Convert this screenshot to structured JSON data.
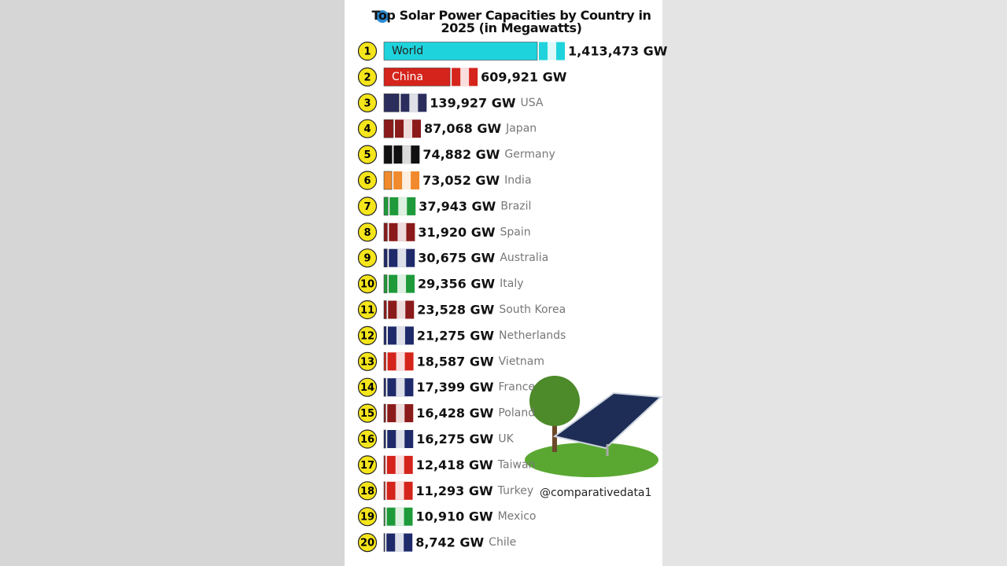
{
  "chart_data": {
    "type": "bar",
    "title": "Top Solar Power Capacities by Country in 2025 (in Megawatts)",
    "ranks": [
      1,
      2,
      3,
      4,
      5,
      6,
      7,
      8,
      9,
      10,
      11,
      12,
      13,
      14,
      15,
      16,
      17,
      18,
      19,
      20
    ],
    "categories": [
      "World",
      "China",
      "USA",
      "Japan",
      "Germany",
      "India",
      "Brazil",
      "Spain",
      "Australia",
      "Italy",
      "South Korea",
      "Netherlands",
      "Vietnam",
      "France",
      "Poland",
      "UK",
      "Taiwan",
      "Turkey",
      "Mexico",
      "Chile"
    ],
    "values": [
      1413473,
      609921,
      139927,
      87068,
      74882,
      73052,
      37943,
      31920,
      30675,
      29356,
      23528,
      21275,
      18587,
      17399,
      16428,
      16275,
      12418,
      11293,
      10910,
      8742
    ],
    "value_labels": [
      "1,413,473 GW",
      "609,921 GW",
      "139,927 GW",
      "87,068 GW",
      "74,882 GW",
      "73,052 GW",
      "37,943 GW",
      "31,920 GW",
      "30,675 GW",
      "29,356 GW",
      "23,528 GW",
      "21,275 GW",
      "18,587 GW",
      "17,399 GW",
      "16,428 GW",
      "16,275 GW",
      "12,418 GW",
      "11,293 GW",
      "10,910 GW",
      "8,742 GW"
    ],
    "colors": [
      "#1fd3dc",
      "#d4241b",
      "#2b2d5c",
      "#8b1a1a",
      "#111111",
      "#f08a2c",
      "#1f9a3a",
      "#8b1a1a",
      "#1f2a6b",
      "#1f9a3a",
      "#8b1a1a",
      "#1f2a6b",
      "#d4241b",
      "#1f2a6b",
      "#8b1a1a",
      "#1f2a6b",
      "#d4241b",
      "#d4241b",
      "#1f9a3a",
      "#1f2a6b"
    ],
    "watermark": "@comparativedata1"
  }
}
